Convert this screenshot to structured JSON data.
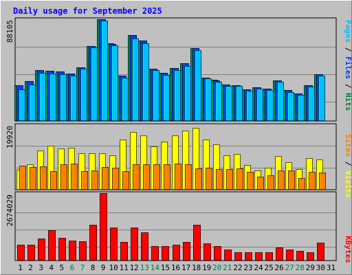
{
  "chart_data": [
    {
      "type": "bar",
      "title": "Daily usage for September 2025",
      "categories": [
        "1",
        "2",
        "3",
        "4",
        "5",
        "6",
        "7",
        "8",
        "9",
        "10",
        "11",
        "12",
        "13",
        "14",
        "15",
        "16",
        "17",
        "18",
        "19",
        "20",
        "21",
        "22",
        "23",
        "24",
        "25",
        "26",
        "27",
        "28",
        "29",
        "30",
        "31"
      ],
      "weekend_days": [
        "6",
        "7",
        "13",
        "14",
        "20",
        "21",
        "27",
        "28"
      ],
      "y_max_label": "88105",
      "ylim": [
        0,
        88105
      ],
      "axis_labels": [
        {
          "text": "Pages",
          "color": "#00c0ff"
        },
        {
          "text": "Files",
          "color": "#0040ff"
        },
        {
          "text": "Hits",
          "color": "#008040"
        }
      ],
      "series": [
        {
          "name": "Hits",
          "color": "#008040",
          "values": [
            31200,
            34800,
            44000,
            43400,
            42800,
            41000,
            46500,
            64800,
            88105,
            67000,
            39200,
            74400,
            69800,
            45500,
            41800,
            45900,
            49900,
            63000,
            37600,
            35500,
            31800,
            31200,
            27600,
            29200,
            27900,
            35100,
            26900,
            24000,
            31200,
            40500,
            0
          ]
        },
        {
          "name": "Files",
          "color": "#0040ff",
          "values": [
            31100,
            34700,
            43900,
            43300,
            42700,
            40900,
            46400,
            64700,
            88000,
            66900,
            39100,
            74300,
            69700,
            45400,
            41700,
            45800,
            49800,
            62900,
            37500,
            35400,
            31700,
            31100,
            27500,
            29100,
            27800,
            35000,
            26800,
            23900,
            31100,
            40400,
            0
          ]
        },
        {
          "name": "Pages",
          "color": "#00c0ff",
          "values": [
            27200,
            31500,
            41500,
            40900,
            40200,
            39000,
            45400,
            63600,
            86800,
            65700,
            37800,
            71300,
            67400,
            43800,
            40000,
            44300,
            47800,
            61400,
            36800,
            34000,
            30300,
            30100,
            26200,
            27800,
            26600,
            33800,
            25300,
            22600,
            30000,
            39000,
            0
          ]
        }
      ]
    },
    {
      "type": "bar",
      "categories": [
        "1",
        "2",
        "3",
        "4",
        "5",
        "6",
        "7",
        "8",
        "9",
        "10",
        "11",
        "12",
        "13",
        "14",
        "15",
        "16",
        "17",
        "18",
        "19",
        "20",
        "21",
        "22",
        "23",
        "24",
        "25",
        "26",
        "27",
        "28",
        "29",
        "30",
        "31"
      ],
      "y_max_label": "19920",
      "ylim": [
        0,
        19920
      ],
      "axis_labels": [
        {
          "text": "Sites",
          "color": "#ff8000"
        },
        {
          "text": "Visits",
          "color": "#ffff00"
        }
      ],
      "series": [
        {
          "name": "Visits",
          "color": "#ffff00",
          "values": [
            6200,
            7800,
            12000,
            13500,
            12800,
            13000,
            11200,
            11300,
            11300,
            10500,
            15500,
            17700,
            16700,
            13300,
            14800,
            16700,
            18300,
            19000,
            15400,
            14000,
            10600,
            11100,
            7700,
            6000,
            6700,
            10300,
            8400,
            6400,
            9700,
            9400,
            0
          ]
        },
        {
          "name": "Sites",
          "color": "#ff8000",
          "values": [
            7400,
            7000,
            7300,
            5800,
            7800,
            8000,
            5700,
            5900,
            6900,
            6700,
            5700,
            7900,
            7900,
            7800,
            7800,
            8000,
            7900,
            6600,
            6700,
            6400,
            6300,
            6500,
            5600,
            4100,
            4400,
            6000,
            5900,
            3700,
            5500,
            5400,
            0
          ]
        }
      ]
    },
    {
      "type": "bar",
      "categories": [
        "1",
        "2",
        "3",
        "4",
        "5",
        "6",
        "7",
        "8",
        "9",
        "10",
        "11",
        "12",
        "13",
        "14",
        "15",
        "16",
        "17",
        "18",
        "19",
        "20",
        "21",
        "22",
        "23",
        "24",
        "25",
        "26",
        "27",
        "28",
        "29",
        "30",
        "31"
      ],
      "y_max_label": "2674029",
      "ylim": [
        0,
        2674029
      ],
      "axis_labels": [
        {
          "text": "KBytes",
          "color": "#ff0000"
        }
      ],
      "series": [
        {
          "name": "KBytes",
          "color": "#ff0000",
          "values": [
            630000,
            630000,
            860000,
            1200000,
            900000,
            800000,
            770000,
            1420000,
            2674029,
            1300000,
            750000,
            1300000,
            1130000,
            560000,
            580000,
            630000,
            740000,
            1420000,
            690000,
            580000,
            450000,
            330000,
            330000,
            330000,
            330000,
            520000,
            430000,
            370000,
            320000,
            700000,
            0
          ]
        }
      ]
    }
  ]
}
